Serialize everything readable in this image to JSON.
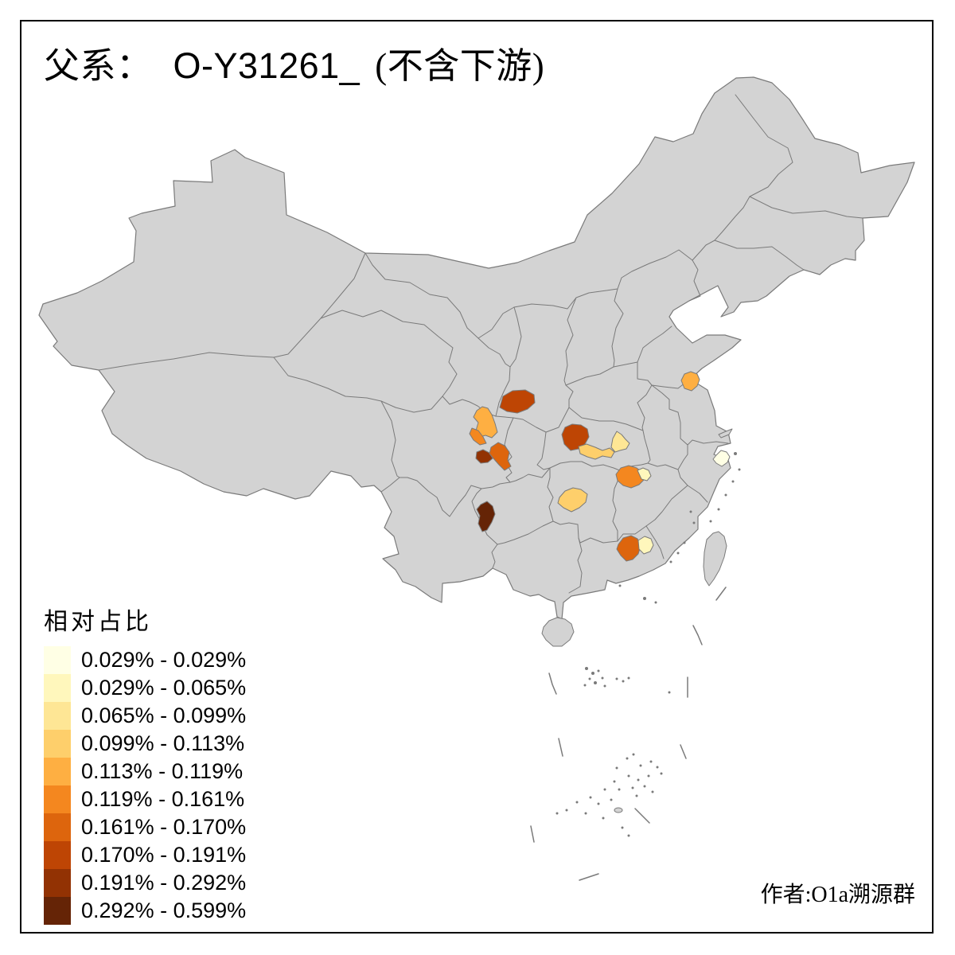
{
  "title": {
    "prefix": "父系：",
    "lineage": "O-Y31261_",
    "suffix": "(不含下游)"
  },
  "legend": {
    "title": "相对占比",
    "classes": [
      {
        "range": "0.029% - 0.029%",
        "color": "#FFFFE5"
      },
      {
        "range": "0.029% - 0.065%",
        "color": "#FFF7BC"
      },
      {
        "range": "0.065% - 0.099%",
        "color": "#FEE695"
      },
      {
        "range": "0.099% - 0.113%",
        "color": "#FECF6B"
      },
      {
        "range": "0.113% - 0.119%",
        "color": "#FEAF42"
      },
      {
        "range": "0.119% - 0.161%",
        "color": "#F4871F"
      },
      {
        "range": "0.161% - 0.170%",
        "color": "#DD650D"
      },
      {
        "range": "0.170% - 0.191%",
        "color": "#BE4504"
      },
      {
        "range": "0.191% - 0.292%",
        "color": "#923203"
      },
      {
        "range": "0.292% - 0.599%",
        "color": "#652406"
      }
    ]
  },
  "attribution": "作者:O1a溯源群",
  "map": {
    "land_color": "#D3D3D3",
    "border_color": "#7A7A7A",
    "background_color": "#FFFFFF",
    "frame_color": "#000000",
    "highlighted_regions": [
      {
        "id": "region-south-shaanxi",
        "legend_class": 7
      },
      {
        "id": "region-north-sichuan",
        "legend_class": 4
      },
      {
        "id": "region-mid-sichuan-west",
        "legend_class": 5
      },
      {
        "id": "region-chengdu-area",
        "legend_class": 8
      },
      {
        "id": "region-east-of-chengdu",
        "legend_class": 6
      },
      {
        "id": "region-ne-yunnan",
        "legend_class": 9
      },
      {
        "id": "region-west-hubei",
        "legend_class": 7
      },
      {
        "id": "region-south-hubei-belt",
        "legend_class": 3
      },
      {
        "id": "region-east-hubei",
        "legend_class": 2
      },
      {
        "id": "region-north-jiangsu",
        "legend_class": 4
      },
      {
        "id": "region-ne-zhejiang",
        "legend_class": 0
      },
      {
        "id": "region-nw-jiangxi",
        "legend_class": 5
      },
      {
        "id": "region-north-jiangxi-pale",
        "legend_class": 1
      },
      {
        "id": "region-central-hunan",
        "legend_class": 3
      },
      {
        "id": "region-north-guangdong",
        "legend_class": 6
      },
      {
        "id": "region-ne-guangdong-pale",
        "legend_class": 1
      }
    ]
  }
}
